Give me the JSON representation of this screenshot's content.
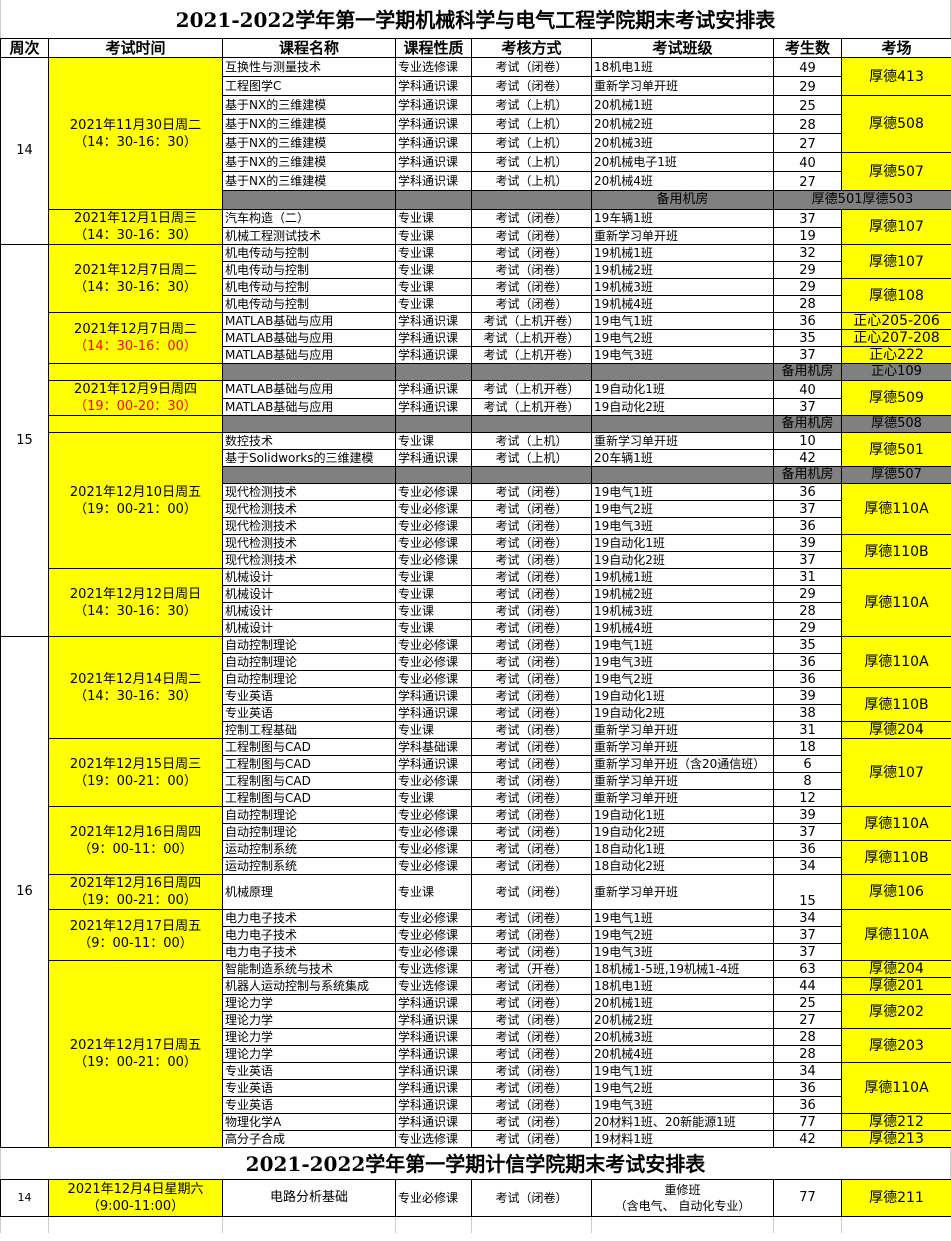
{
  "title": "2021-2022学年第一学期机械科学与电气工程学院期末考试安排表",
  "headers": [
    "周次",
    "考试时间",
    "课程名称",
    "课程性质",
    "考核方式",
    "考试班级",
    "考生数",
    "考场"
  ],
  "colors": {
    "highlight": "#ffff00",
    "spare": "#808080",
    "time_alert": "#ff0000"
  },
  "weeks": [
    {
      "week": "14",
      "sessions": [
        {
          "date": "2021年11月30日周二",
          "time": "（14：30-16：30）",
          "groups": [
            {
              "room": "厚德413",
              "exams": [
                {
                  "course": "互换性与测量技术",
                  "type": "专业选修课",
                  "method": "考试（闭卷）",
                  "class": "18机电1班",
                  "count": "49"
                },
                {
                  "course": "工程图学C",
                  "type": "学科通识课",
                  "method": "考试（闭卷）",
                  "class": "重新学习单开班",
                  "count": "29"
                }
              ]
            },
            {
              "room": "厚德508",
              "exams": [
                {
                  "course": "基于NX的三维建模",
                  "type": "学科通识课",
                  "method": "考试（上机）",
                  "class": "20机械1班",
                  "count": "25"
                },
                {
                  "course": "基于NX的三维建模",
                  "type": "学科通识课",
                  "method": "考试（上机）",
                  "class": "20机械2班",
                  "count": "28"
                },
                {
                  "course": "基于NX的三维建模",
                  "type": "学科通识课",
                  "method": "考试（上机）",
                  "class": "20机械3班",
                  "count": "27"
                }
              ]
            },
            {
              "room": "厚德507",
              "exams": [
                {
                  "course": "基于NX的三维建模",
                  "type": "学科通识课",
                  "method": "考试（上机）",
                  "class": "20机械电子1班",
                  "count": "40"
                },
                {
                  "course": "基于NX的三维建模",
                  "type": "学科通识课",
                  "method": "考试（上机）",
                  "class": "20机械4班",
                  "count": "27"
                }
              ]
            },
            {
              "spare": "备用机房",
              "room": "厚德501厚德503",
              "merged": true
            }
          ]
        },
        {
          "date": "2021年12月1日周三",
          "time": "（14：30-16：30）",
          "groups": [
            {
              "room": "厚德107",
              "exams": [
                {
                  "course": "汽车构造（二）",
                  "type": "专业课",
                  "method": "考试（闭卷）",
                  "class": "19车辆1班",
                  "count": "37"
                },
                {
                  "course": "机械工程测试技术",
                  "type": "专业课",
                  "method": "考试（闭卷）",
                  "class": "重新学习单开班",
                  "count": "19"
                }
              ]
            }
          ]
        }
      ]
    },
    {
      "week": "15",
      "sessions": [
        {
          "date": "2021年12月7日周二",
          "time": "（14：30-16：30）",
          "groups": [
            {
              "room": "厚德107",
              "exams": [
                {
                  "course": "机电传动与控制",
                  "type": "专业课",
                  "method": "考试（闭卷）",
                  "class": "19机械1班",
                  "count": "32"
                },
                {
                  "course": "机电传动与控制",
                  "type": "专业课",
                  "method": "考试（闭卷）",
                  "class": "19机械2班",
                  "count": "29"
                }
              ]
            },
            {
              "room": "厚德108",
              "exams": [
                {
                  "course": "机电传动与控制",
                  "type": "专业课",
                  "method": "考试（闭卷）",
                  "class": "19机械3班",
                  "count": "29"
                },
                {
                  "course": "机电传动与控制",
                  "type": "专业课",
                  "method": "考试（闭卷）",
                  "class": "19机械4班",
                  "count": "28"
                }
              ]
            }
          ]
        },
        {
          "date": "2021年12月7日周二",
          "time": "（14：30-16：00）",
          "time_red": true,
          "groups": [
            {
              "room": "正心205-206",
              "exams": [
                {
                  "course": "MATLAB基础与应用",
                  "type": "学科通识课",
                  "method": "考试（上机开卷）",
                  "class": "19电气1班",
                  "count": "36"
                }
              ]
            },
            {
              "room": "正心207-208",
              "exams": [
                {
                  "course": "MATLAB基础与应用",
                  "type": "学科通识课",
                  "method": "考试（上机开卷）",
                  "class": "19电气2班",
                  "count": "35"
                }
              ]
            },
            {
              "room": "正心222",
              "exams": [
                {
                  "course": "MATLAB基础与应用",
                  "type": "学科通识课",
                  "method": "考试（上机开卷）",
                  "class": "19电气3班",
                  "count": "37"
                }
              ]
            }
          ]
        },
        {
          "date": "",
          "time": "",
          "groups": [
            {
              "spare": "备用机房",
              "room": "正心109"
            }
          ]
        },
        {
          "date": "2021年12月9日周四",
          "time": "（19：00-20：30）",
          "time_red": true,
          "groups": [
            {
              "room": "厚德509",
              "exams": [
                {
                  "course": "MATLAB基础与应用",
                  "type": "学科通识课",
                  "method": "考试（上机开卷）",
                  "class": "19自动化1班",
                  "count": "40"
                },
                {
                  "course": "MATLAB基础与应用",
                  "type": "学科通识课",
                  "method": "考试（上机开卷）",
                  "class": "19自动化2班",
                  "count": "37"
                }
              ]
            }
          ]
        },
        {
          "date": "",
          "time": "",
          "groups": [
            {
              "spare": "备用机房",
              "room": "厚德508"
            }
          ]
        },
        {
          "date": "2021年12月10日周五",
          "time": "（19：00-21：00）",
          "groups": [
            {
              "room": "厚德501",
              "exams": [
                {
                  "course": "数控技术",
                  "type": "专业课",
                  "method": "考试（上机）",
                  "class": "重新学习单开班",
                  "count": "10"
                },
                {
                  "course": "基于Solidworks的三维建模",
                  "type": "学科通识课",
                  "method": "考试（上机）",
                  "class": "20车辆1班",
                  "count": "42"
                }
              ]
            },
            {
              "spare": "备用机房",
              "room": "厚德507"
            },
            {
              "room": "厚德110A",
              "exams": [
                {
                  "course": "现代检测技术",
                  "type": "专业必修课",
                  "method": "考试（闭卷）",
                  "class": "19电气1班",
                  "count": "36"
                },
                {
                  "course": "现代检测技术",
                  "type": "专业必修课",
                  "method": "考试（闭卷）",
                  "class": "19电气2班",
                  "count": "37"
                },
                {
                  "course": "现代检测技术",
                  "type": "专业必修课",
                  "method": "考试（闭卷）",
                  "class": "19电气3班",
                  "count": "36"
                }
              ]
            },
            {
              "room": "厚德110B",
              "exams": [
                {
                  "course": "现代检测技术",
                  "type": "专业必修课",
                  "method": "考试（闭卷）",
                  "class": "19自动化1班",
                  "count": "39"
                },
                {
                  "course": "现代检测技术",
                  "type": "专业必修课",
                  "method": "考试（闭卷）",
                  "class": "19自动化2班",
                  "count": "37"
                }
              ]
            }
          ]
        },
        {
          "date": "2021年12月12日周日",
          "time": "（14：30-16：30）",
          "groups": [
            {
              "room": "厚德110A",
              "exams": [
                {
                  "course": "机械设计",
                  "type": "专业课",
                  "method": "考试（闭卷）",
                  "class": "19机械1班",
                  "count": "31"
                },
                {
                  "course": "机械设计",
                  "type": "专业课",
                  "method": "考试（闭卷）",
                  "class": "19机械2班",
                  "count": "29"
                },
                {
                  "course": "机械设计",
                  "type": "专业课",
                  "method": "考试（闭卷）",
                  "class": "19机械3班",
                  "count": "28"
                },
                {
                  "course": "机械设计",
                  "type": "专业课",
                  "method": "考试（闭卷）",
                  "class": "19机械4班",
                  "count": "29"
                }
              ]
            }
          ]
        }
      ]
    },
    {
      "week": "16",
      "sessions": [
        {
          "date": "2021年12月14日周二",
          "time": "（14：30-16：30）",
          "groups": [
            {
              "room": "厚德110A",
              "exams": [
                {
                  "course": "自动控制理论",
                  "type": "专业必修课",
                  "method": "考试（闭卷）",
                  "class": "19电气1班",
                  "count": "35"
                },
                {
                  "course": "自动控制理论",
                  "type": "专业必修课",
                  "method": "考试（闭卷）",
                  "class": "19电气3班",
                  "count": "36"
                },
                {
                  "course": "自动控制理论",
                  "type": "专业必修课",
                  "method": "考试（闭卷）",
                  "class": "19电气2班",
                  "count": "36"
                }
              ]
            },
            {
              "room": "厚德110B",
              "exams": [
                {
                  "course": "专业英语",
                  "type": "学科通识课",
                  "method": "考试（闭卷）",
                  "class": "19自动化1班",
                  "count": "39"
                },
                {
                  "course": "专业英语",
                  "type": "学科通识课",
                  "method": "考试（闭卷）",
                  "class": "19自动化2班",
                  "count": "38"
                }
              ]
            },
            {
              "room": "厚德204",
              "exams": [
                {
                  "course": "控制工程基础",
                  "type": "专业课",
                  "method": "考试（闭卷）",
                  "class": "重新学习单开班",
                  "count": "31"
                }
              ]
            }
          ]
        },
        {
          "date": "2021年12月15日周三",
          "time": "（19：00-21：00）",
          "groups": [
            {
              "room": "厚德107",
              "exams": [
                {
                  "course": "工程制图与CAD",
                  "type": "学科基础课",
                  "method": "考试（闭卷）",
                  "class": "重新学习单开班",
                  "count": "18"
                },
                {
                  "course": "工程制图与CAD",
                  "type": "学科通识课",
                  "method": "考试（闭卷）",
                  "class": "重新学习单开班（含20通信班）",
                  "count": "6"
                },
                {
                  "course": "工程制图与CAD",
                  "type": "专业必修课",
                  "method": "考试（闭卷）",
                  "class": "重新学习单开班",
                  "count": "8"
                },
                {
                  "course": "工程制图与CAD",
                  "type": "专业课",
                  "method": "考试（闭卷）",
                  "class": "重新学习单开班",
                  "count": "12"
                }
              ]
            }
          ]
        },
        {
          "date": "2021年12月16日周四",
          "time": "（9：00-11：00）",
          "groups": [
            {
              "room": "厚德110A",
              "exams": [
                {
                  "course": "自动控制理论",
                  "type": "专业必修课",
                  "method": "考试（闭卷）",
                  "class": "19自动化1班",
                  "count": "39"
                },
                {
                  "course": "自动控制理论",
                  "type": "专业必修课",
                  "method": "考试（闭卷）",
                  "class": "19自动化2班",
                  "count": "37"
                }
              ]
            },
            {
              "room": "厚德110B",
              "exams": [
                {
                  "course": "运动控制系统",
                  "type": "专业必修课",
                  "method": "考试（闭卷）",
                  "class": "18自动化1班",
                  "count": "36"
                },
                {
                  "course": "运动控制系统",
                  "type": "专业必修课",
                  "method": "考试（闭卷）",
                  "class": "18自动化2班",
                  "count": "34"
                }
              ]
            }
          ]
        },
        {
          "date": "2021年12月16日周四",
          "time": "（19：00-21：00）",
          "groups": [
            {
              "room": "厚德106",
              "exams": [
                {
                  "course": "机械原理",
                  "type": "专业课",
                  "method": "考试（闭卷）",
                  "class": "重新学习单开班",
                  "count": "15"
                }
              ]
            }
          ]
        },
        {
          "date": "2021年12月17日周五",
          "time": "（9：00-11：00）",
          "groups": [
            {
              "room": "厚德110A",
              "exams": [
                {
                  "course": "电力电子技术",
                  "type": "专业必修课",
                  "method": "考试（闭卷）",
                  "class": "19电气1班",
                  "count": "34"
                },
                {
                  "course": "电力电子技术",
                  "type": "专业必修课",
                  "method": "考试（闭卷）",
                  "class": "19电气2班",
                  "count": "37"
                },
                {
                  "course": "电力电子技术",
                  "type": "专业必修课",
                  "method": "考试（闭卷）",
                  "class": "19电气3班",
                  "count": "37"
                }
              ]
            }
          ]
        },
        {
          "date": "2021年12月17日周五",
          "time": "（19：00-21：00）",
          "groups": [
            {
              "room": "厚德204",
              "exams": [
                {
                  "course": "智能制造系统与技术",
                  "type": "专业选修课",
                  "method": "考试（开卷）",
                  "class": "18机械1-5班,19机械1-4班",
                  "count": "63"
                }
              ]
            },
            {
              "room": "厚德201",
              "exams": [
                {
                  "course": "机器人运动控制与系统集成",
                  "type": "专业选修课",
                  "method": "考试（闭卷）",
                  "class": "18机电1班",
                  "count": "44"
                }
              ]
            },
            {
              "room": "厚德202",
              "exams": [
                {
                  "course": "理论力学",
                  "type": "学科通识课",
                  "method": "考试（闭卷）",
                  "class": "20机械1班",
                  "count": "25"
                },
                {
                  "course": "理论力学",
                  "type": "学科通识课",
                  "method": "考试（闭卷）",
                  "class": "20机械2班",
                  "count": "27"
                }
              ]
            },
            {
              "room": "厚德203",
              "exams": [
                {
                  "course": "理论力学",
                  "type": "学科通识课",
                  "method": "考试（闭卷）",
                  "class": "20机械3班",
                  "count": "28"
                },
                {
                  "course": "理论力学",
                  "type": "学科通识课",
                  "method": "考试（闭卷）",
                  "class": "20机械4班",
                  "count": "28"
                }
              ]
            },
            {
              "room": "厚德110A",
              "exams": [
                {
                  "course": "专业英语",
                  "type": "学科通识课",
                  "method": "考试（闭卷）",
                  "class": "19电气1班",
                  "count": "34"
                },
                {
                  "course": "专业英语",
                  "type": "学科通识课",
                  "method": "考试（闭卷）",
                  "class": "19电气2班",
                  "count": "36"
                },
                {
                  "course": "专业英语",
                  "type": "学科通识课",
                  "method": "考试（闭卷）",
                  "class": "19电气3班",
                  "count": "36"
                }
              ]
            },
            {
              "room": "厚德212",
              "exams": [
                {
                  "course": "物理化学A",
                  "type": "学科通识课",
                  "method": "考试（闭卷）",
                  "class": "20材料1班、20新能源1班",
                  "count": "77"
                }
              ]
            },
            {
              "room": "厚德213",
              "exams": [
                {
                  "course": "高分子合成",
                  "type": "专业选修课",
                  "method": "考试（闭卷）",
                  "class": "19材料1班",
                  "count": "42"
                }
              ]
            }
          ]
        }
      ]
    }
  ],
  "second": {
    "title": "2021-2022学年第一学期计信学院期末考试安排表",
    "row": {
      "week": "14",
      "date": "2021年12月4日星期六",
      "time": "（9:00-11:00）",
      "course": "电路分析基础",
      "type": "专业必修课",
      "method": "考试（闭卷）",
      "class_line1": "重修班",
      "class_line2": "（含电气、 自动化专业）",
      "count": "77",
      "room": "厚德211"
    }
  }
}
